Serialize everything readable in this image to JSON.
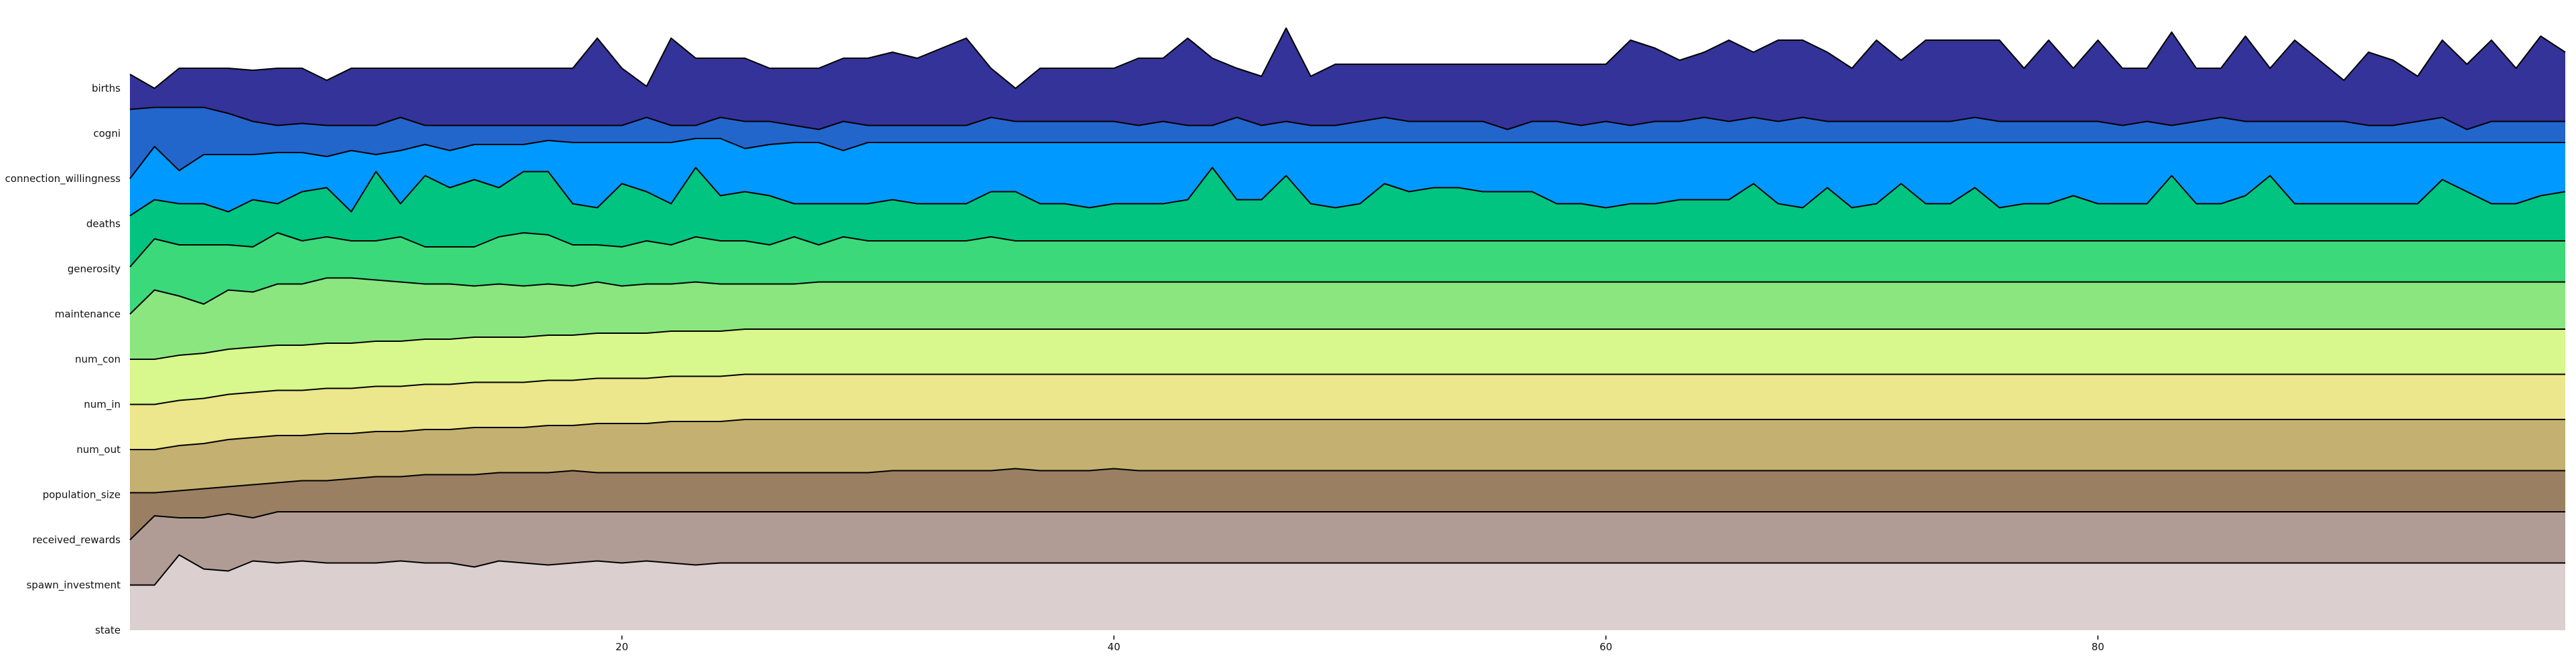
{
  "chart_data": {
    "type": "area",
    "title": "",
    "xlabel": "",
    "ylabel": "",
    "xlim": [
      0,
      99
    ],
    "x_ticks": [
      20,
      40,
      60,
      80
    ],
    "grid": false,
    "legend": "none",
    "rows": [
      {
        "label": "births",
        "color": "#333399",
        "values": [
          0.7,
          0,
          1,
          1,
          1,
          0.9,
          1,
          1,
          0.4,
          1,
          1,
          1,
          1,
          1,
          1,
          1,
          1,
          1,
          1,
          2.5,
          1,
          0.1,
          2.5,
          1.5,
          1.5,
          1.5,
          1,
          1,
          1,
          1.5,
          1.5,
          1.8,
          1.5,
          2,
          2.5,
          1,
          0,
          1,
          1,
          1,
          1,
          1.5,
          1.5,
          2.5,
          1.5,
          1,
          0.6,
          3,
          0.6,
          1.2,
          1.2,
          1.2,
          1.2,
          1.2,
          1.2,
          1.2,
          1.2,
          1.2,
          1.2,
          1.2,
          1.2,
          2.4,
          2,
          1.4,
          1.8,
          2.4,
          1.8,
          2.4,
          2.4,
          1.8,
          1,
          2.4,
          1.4,
          2.4,
          2.4,
          2.4,
          2.4,
          1,
          2.4,
          1,
          2.4,
          1,
          1,
          2.8,
          1,
          1,
          2.6,
          1,
          2.4,
          1.4,
          0.4,
          1.8,
          1.4,
          0.6,
          2.4,
          1.2,
          2.4,
          1,
          2.6,
          1.8
        ]
      },
      {
        "label": "cogni",
        "color": "#2266cc",
        "values": [
          1.2,
          1.3,
          1.3,
          1.3,
          1,
          0.6,
          0.4,
          0.5,
          0.4,
          0.4,
          0.4,
          0.8,
          0.4,
          0.4,
          0.4,
          0.4,
          0.4,
          0.4,
          0.4,
          0.4,
          0.4,
          0.8,
          0.4,
          0.4,
          0.8,
          0.6,
          0.6,
          0.4,
          0.2,
          0.6,
          0.4,
          0.4,
          0.4,
          0.4,
          0.4,
          0.8,
          0.6,
          0.6,
          0.6,
          0.6,
          0.6,
          0.4,
          0.6,
          0.4,
          0.4,
          0.8,
          0.4,
          0.6,
          0.4,
          0.4,
          0.6,
          0.8,
          0.6,
          0.6,
          0.6,
          0.6,
          0.2,
          0.6,
          0.6,
          0.4,
          0.6,
          0.4,
          0.6,
          0.6,
          0.8,
          0.6,
          0.8,
          0.6,
          0.8,
          0.6,
          0.6,
          0.6,
          0.6,
          0.6,
          0.6,
          0.8,
          0.6,
          0.6,
          0.6,
          0.6,
          0.6,
          0.4,
          0.6,
          0.4,
          0.6,
          0.8,
          0.6,
          0.6,
          0.6,
          0.6,
          0.6,
          0.4,
          0.4,
          0.6,
          0.8,
          0.2,
          0.6,
          0.6,
          0.6,
          0.6
        ]
      },
      {
        "label": "connection_willingness",
        "color": "#0099ff",
        "values": [
          0,
          1.6,
          0.4,
          1.2,
          1.2,
          1.2,
          1.3,
          1.3,
          1.1,
          1.4,
          1.2,
          1.4,
          1.7,
          1.4,
          1.7,
          1.7,
          1.7,
          1.9,
          1.8,
          1.8,
          1.8,
          1.8,
          1.8,
          2,
          2,
          1.5,
          1.7,
          1.8,
          1.8,
          1.4,
          1.8,
          1.8,
          1.8,
          1.8,
          1.8,
          1.8,
          1.8,
          1.8,
          1.8,
          1.8,
          1.8,
          1.8,
          1.8,
          1.8,
          1.8,
          1.8,
          1.8,
          1.8,
          1.8,
          1.8,
          1.8,
          1.8,
          1.8,
          1.8,
          1.8,
          1.8,
          1.8,
          1.8,
          1.8,
          1.8,
          1.8,
          1.8,
          1.8,
          1.8,
          1.8,
          1.8,
          1.8,
          1.8,
          1.8,
          1.8,
          1.8,
          1.8,
          1.8,
          1.8,
          1.8,
          1.8,
          1.8,
          1.8,
          1.8,
          1.8,
          1.8,
          1.8,
          1.8,
          1.8,
          1.8,
          1.8,
          1.8,
          1.8,
          1.8,
          1.8,
          1.8,
          1.8,
          1.8,
          1.8,
          1.8,
          1.8,
          1.8,
          1.8,
          1.8,
          1.8
        ]
      },
      {
        "label": "deaths",
        "color": "#00c47f",
        "values": [
          0.4,
          1.2,
          1,
          1,
          0.6,
          1.2,
          1,
          1.6,
          1.8,
          0.6,
          2.6,
          1,
          2.4,
          1.8,
          2.2,
          1.8,
          2.6,
          2.6,
          1,
          0.8,
          2,
          1.6,
          1,
          2.8,
          1.4,
          1.6,
          1.4,
          1,
          1,
          1,
          1,
          1.2,
          1,
          1,
          1,
          1.6,
          1.6,
          1,
          1,
          0.8,
          1,
          1,
          1,
          1.2,
          2.8,
          1.2,
          1.2,
          2.4,
          1,
          0.8,
          1,
          2,
          1.6,
          1.8,
          1.8,
          1.6,
          1.6,
          1.6,
          1,
          1,
          0.8,
          1,
          1,
          1.2,
          1.2,
          1.2,
          2,
          1,
          0.8,
          1.8,
          0.8,
          1,
          2,
          1,
          1,
          1.8,
          0.8,
          1,
          1,
          1.4,
          1,
          1,
          1,
          2.4,
          1,
          1,
          1.4,
          2.4,
          1,
          1,
          1,
          1,
          1,
          1,
          2.2,
          1.6,
          1,
          1,
          1.4,
          1.6
        ]
      },
      {
        "label": "generosity",
        "color": "#3bd97a",
        "values": [
          0.1,
          1.5,
          1.2,
          1.2,
          1.2,
          1.1,
          1.8,
          1.4,
          1.6,
          1.4,
          1.4,
          1.6,
          1.1,
          1.1,
          1.1,
          1.6,
          1.8,
          1.7,
          1.2,
          1.2,
          1.1,
          1.4,
          1.2,
          1.6,
          1.4,
          1.4,
          1.2,
          1.6,
          1.2,
          1.6,
          1.4,
          1.4,
          1.4,
          1.4,
          1.4,
          1.6,
          1.4,
          1.4,
          1.4,
          1.4,
          1.4,
          1.4,
          1.4,
          1.4,
          1.4,
          1.4,
          1.4,
          1.4,
          1.4,
          1.4,
          1.4,
          1.4,
          1.4,
          1.4,
          1.4,
          1.4,
          1.4,
          1.4,
          1.4,
          1.4,
          1.4,
          1.4,
          1.4,
          1.4,
          1.4,
          1.4,
          1.4,
          1.4,
          1.4,
          1.4,
          1.4,
          1.4,
          1.4,
          1.4,
          1.4,
          1.4,
          1.4,
          1.4,
          1.4,
          1.4,
          1.4,
          1.4,
          1.4,
          1.4,
          1.4,
          1.4,
          1.4,
          1.4,
          1.4,
          1.4,
          1.4,
          1.4,
          1.4,
          1.4,
          1.4,
          1.4,
          1.4,
          1.4,
          1.4,
          1.4
        ]
      },
      {
        "label": "maintenance",
        "color": "#8be67f",
        "values": [
          0,
          1.2,
          0.9,
          0.5,
          1.2,
          1.1,
          1.5,
          1.5,
          1.8,
          1.8,
          1.7,
          1.6,
          1.5,
          1.5,
          1.4,
          1.5,
          1.4,
          1.5,
          1.4,
          1.6,
          1.4,
          1.5,
          1.5,
          1.6,
          1.5,
          1.5,
          1.5,
          1.5,
          1.6,
          1.6,
          1.6,
          1.6,
          1.6,
          1.6,
          1.6,
          1.6,
          1.6,
          1.6,
          1.6,
          1.6,
          1.6,
          1.6,
          1.6,
          1.6,
          1.6,
          1.6,
          1.6,
          1.6,
          1.6,
          1.6,
          1.6,
          1.6,
          1.6,
          1.6,
          1.6,
          1.6,
          1.6,
          1.6,
          1.6,
          1.6,
          1.6,
          1.6,
          1.6,
          1.6,
          1.6,
          1.6,
          1.6,
          1.6,
          1.6,
          1.6,
          1.6,
          1.6,
          1.6,
          1.6,
          1.6,
          1.6,
          1.6,
          1.6,
          1.6,
          1.6,
          1.6,
          1.6,
          1.6,
          1.6,
          1.6,
          1.6,
          1.6,
          1.6,
          1.6,
          1.6,
          1.6,
          1.6,
          1.6,
          1.6,
          1.6,
          1.6,
          1.6,
          1.6,
          1.6,
          1.6
        ]
      },
      {
        "label": "num_con",
        "color": "#d8f78c",
        "values": [
          0,
          0,
          0.2,
          0.3,
          0.5,
          0.6,
          0.7,
          0.7,
          0.8,
          0.8,
          0.9,
          0.9,
          1,
          1,
          1.1,
          1.1,
          1.1,
          1.2,
          1.2,
          1.3,
          1.3,
          1.3,
          1.4,
          1.4,
          1.4,
          1.5,
          1.5,
          1.5,
          1.5,
          1.5,
          1.5,
          1.5,
          1.5,
          1.5,
          1.5,
          1.5,
          1.5,
          1.5,
          1.5,
          1.5,
          1.5,
          1.5,
          1.5,
          1.5,
          1.5,
          1.5,
          1.5,
          1.5,
          1.5,
          1.5,
          1.5,
          1.5,
          1.5,
          1.5,
          1.5,
          1.5,
          1.5,
          1.5,
          1.5,
          1.5,
          1.5,
          1.5,
          1.5,
          1.5,
          1.5,
          1.5,
          1.5,
          1.5,
          1.5,
          1.5,
          1.5,
          1.5,
          1.5,
          1.5,
          1.5,
          1.5,
          1.5,
          1.5,
          1.5,
          1.5,
          1.5,
          1.5,
          1.5,
          1.5,
          1.5,
          1.5,
          1.5,
          1.5,
          1.5,
          1.5,
          1.5,
          1.5,
          1.5,
          1.5,
          1.5,
          1.5,
          1.5,
          1.5,
          1.5,
          1.5
        ]
      },
      {
        "label": "num_in",
        "color": "#ece68c",
        "values": [
          0,
          0,
          0.2,
          0.3,
          0.5,
          0.6,
          0.7,
          0.7,
          0.8,
          0.8,
          0.9,
          0.9,
          1,
          1,
          1.1,
          1.1,
          1.1,
          1.2,
          1.2,
          1.3,
          1.3,
          1.3,
          1.4,
          1.4,
          1.4,
          1.5,
          1.5,
          1.5,
          1.5,
          1.5,
          1.5,
          1.5,
          1.5,
          1.5,
          1.5,
          1.5,
          1.5,
          1.5,
          1.5,
          1.5,
          1.5,
          1.5,
          1.5,
          1.5,
          1.5,
          1.5,
          1.5,
          1.5,
          1.5,
          1.5,
          1.5,
          1.5,
          1.5,
          1.5,
          1.5,
          1.5,
          1.5,
          1.5,
          1.5,
          1.5,
          1.5,
          1.5,
          1.5,
          1.5,
          1.5,
          1.5,
          1.5,
          1.5,
          1.5,
          1.5,
          1.5,
          1.5,
          1.5,
          1.5,
          1.5,
          1.5,
          1.5,
          1.5,
          1.5,
          1.5,
          1.5,
          1.5,
          1.5,
          1.5,
          1.5,
          1.5,
          1.5,
          1.5,
          1.5,
          1.5,
          1.5,
          1.5,
          1.5,
          1.5,
          1.5,
          1.5,
          1.5,
          1.5,
          1.5,
          1.5
        ]
      },
      {
        "label": "num_out",
        "color": "#c4b071",
        "values": [
          0,
          0,
          0.2,
          0.3,
          0.5,
          0.6,
          0.7,
          0.7,
          0.8,
          0.8,
          0.9,
          0.9,
          1,
          1,
          1.1,
          1.1,
          1.1,
          1.2,
          1.2,
          1.3,
          1.3,
          1.3,
          1.4,
          1.4,
          1.4,
          1.5,
          1.5,
          1.5,
          1.5,
          1.5,
          1.5,
          1.5,
          1.5,
          1.5,
          1.5,
          1.5,
          1.5,
          1.5,
          1.5,
          1.5,
          1.5,
          1.5,
          1.5,
          1.5,
          1.5,
          1.5,
          1.5,
          1.5,
          1.5,
          1.5,
          1.5,
          1.5,
          1.5,
          1.5,
          1.5,
          1.5,
          1.5,
          1.5,
          1.5,
          1.5,
          1.5,
          1.5,
          1.5,
          1.5,
          1.5,
          1.5,
          1.5,
          1.5,
          1.5,
          1.5,
          1.5,
          1.5,
          1.5,
          1.5,
          1.5,
          1.5,
          1.5,
          1.5,
          1.5,
          1.5,
          1.5,
          1.5,
          1.5,
          1.5,
          1.5,
          1.5,
          1.5,
          1.5,
          1.5,
          1.5,
          1.5,
          1.5,
          1.5,
          1.5,
          1.5,
          1.5,
          1.5,
          1.5,
          1.5,
          1.5
        ]
      },
      {
        "label": "population_size",
        "color": "#9b7f62",
        "values": [
          0.1,
          0.1,
          0.2,
          0.3,
          0.4,
          0.5,
          0.6,
          0.7,
          0.7,
          0.8,
          0.9,
          0.9,
          1,
          1,
          1,
          1.1,
          1.1,
          1.1,
          1.2,
          1.1,
          1.1,
          1.1,
          1.1,
          1.1,
          1.1,
          1.1,
          1.1,
          1.1,
          1.1,
          1.1,
          1.1,
          1.2,
          1.2,
          1.2,
          1.2,
          1.2,
          1.3,
          1.2,
          1.2,
          1.2,
          1.3,
          1.2,
          1.2,
          1.2,
          1.2,
          1.2,
          1.2,
          1.2,
          1.2,
          1.2,
          1.2,
          1.2,
          1.2,
          1.2,
          1.2,
          1.2,
          1.2,
          1.2,
          1.2,
          1.2,
          1.2,
          1.2,
          1.2,
          1.2,
          1.2,
          1.2,
          1.2,
          1.2,
          1.2,
          1.2,
          1.2,
          1.2,
          1.2,
          1.2,
          1.2,
          1.2,
          1.2,
          1.2,
          1.2,
          1.2,
          1.2,
          1.2,
          1.2,
          1.2,
          1.2,
          1.2,
          1.2,
          1.2,
          1.2,
          1.2,
          1.2,
          1.2,
          1.2,
          1.2,
          1.2,
          1.2,
          1.2,
          1.2,
          1.2,
          1.2
        ]
      },
      {
        "label": "received_rewards",
        "color": "#b09c94",
        "values": [
          0,
          1.2,
          1.1,
          1.1,
          1.3,
          1.1,
          1.4,
          1.4,
          1.4,
          1.4,
          1.4,
          1.4,
          1.4,
          1.4,
          1.4,
          1.4,
          1.4,
          1.4,
          1.4,
          1.4,
          1.4,
          1.4,
          1.4,
          1.4,
          1.4,
          1.4,
          1.4,
          1.4,
          1.4,
          1.4,
          1.4,
          1.4,
          1.4,
          1.4,
          1.4,
          1.4,
          1.4,
          1.4,
          1.4,
          1.4,
          1.4,
          1.4,
          1.4,
          1.4,
          1.4,
          1.4,
          1.4,
          1.4,
          1.4,
          1.4,
          1.4,
          1.4,
          1.4,
          1.4,
          1.4,
          1.4,
          1.4,
          1.4,
          1.4,
          1.4,
          1.4,
          1.4,
          1.4,
          1.4,
          1.4,
          1.4,
          1.4,
          1.4,
          1.4,
          1.4,
          1.4,
          1.4,
          1.4,
          1.4,
          1.4,
          1.4,
          1.4,
          1.4,
          1.4,
          1.4,
          1.4,
          1.4,
          1.4,
          1.4,
          1.4,
          1.4,
          1.4,
          1.4,
          1.4,
          1.4,
          1.4,
          1.4,
          1.4,
          1.4,
          1.4,
          1.4,
          1.4,
          1.4,
          1.4,
          1.4
        ]
      },
      {
        "label": "spawn_investment",
        "color": "#dbcfcf",
        "values": [
          0,
          0,
          1.5,
          0.8,
          0.7,
          1.2,
          1.1,
          1.2,
          1.1,
          1.1,
          1.1,
          1.2,
          1.1,
          1.1,
          0.9,
          1.2,
          1.1,
          1,
          1.1,
          1.2,
          1.1,
          1.2,
          1.1,
          1,
          1.1,
          1.1,
          1.1,
          1.1,
          1.1,
          1.1,
          1.1,
          1.1,
          1.1,
          1.1,
          1.1,
          1.1,
          1.1,
          1.1,
          1.1,
          1.1,
          1.1,
          1.1,
          1.1,
          1.1,
          1.1,
          1.1,
          1.1,
          1.1,
          1.1,
          1.1,
          1.1,
          1.1,
          1.1,
          1.1,
          1.1,
          1.1,
          1.1,
          1.1,
          1.1,
          1.1,
          1.1,
          1.1,
          1.1,
          1.1,
          1.1,
          1.1,
          1.1,
          1.1,
          1.1,
          1.1,
          1.1,
          1.1,
          1.1,
          1.1,
          1.1,
          1.1,
          1.1,
          1.1,
          1.1,
          1.1,
          1.1,
          1.1,
          1.1,
          1.1,
          1.1,
          1.1,
          1.1,
          1.1,
          1.1,
          1.1,
          1.1,
          1.1,
          1.1,
          1.1,
          1.1,
          1.1,
          1.1,
          1.1,
          1.1,
          1.1
        ]
      },
      {
        "label": "state",
        "color": "#ffffff",
        "values": []
      }
    ]
  }
}
